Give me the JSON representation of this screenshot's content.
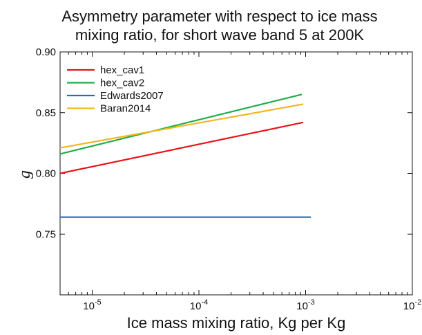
{
  "chart_data": {
    "type": "line",
    "title_lines": [
      "Asymmetry parameter with respect to ice mass",
      "mixing ratio, for short wave band 5 at 200K"
    ],
    "xlabel": "Ice mass mixing ratio, Kg per Kg",
    "ylabel": "g",
    "x_scale": "log",
    "xlim": [
      5e-06,
      0.01
    ],
    "ylim": [
      0.7,
      0.9
    ],
    "x_ticks": [
      1e-05,
      0.0001,
      0.001,
      0.01
    ],
    "x_tick_labels": [
      {
        "base": "10",
        "exp": "-5"
      },
      {
        "base": "10",
        "exp": "-4"
      },
      {
        "base": "10",
        "exp": "-3"
      },
      {
        "base": "10",
        "exp": "-2"
      }
    ],
    "y_ticks": [
      0.75,
      0.8,
      0.85,
      0.9
    ],
    "y_tick_labels": [
      "0.75",
      "0.80",
      "0.85",
      "0.90"
    ],
    "grid": false,
    "legend_position": "top-left",
    "series": [
      {
        "name": "hex_cav1",
        "color": "#e8141b",
        "x": [
          5e-06,
          0.00095
        ],
        "y": [
          0.8,
          0.842
        ]
      },
      {
        "name": "hex_cav2",
        "color": "#1fad48",
        "x": [
          5e-06,
          0.00092
        ],
        "y": [
          0.816,
          0.865
        ]
      },
      {
        "name": "Edwards2007",
        "color": "#1f6fc0",
        "x": [
          5e-06,
          0.00112
        ],
        "y": [
          0.764,
          0.764
        ]
      },
      {
        "name": "Baran2014",
        "color": "#f5b61a",
        "x": [
          5e-06,
          0.00095
        ],
        "y": [
          0.821,
          0.857
        ]
      }
    ]
  }
}
